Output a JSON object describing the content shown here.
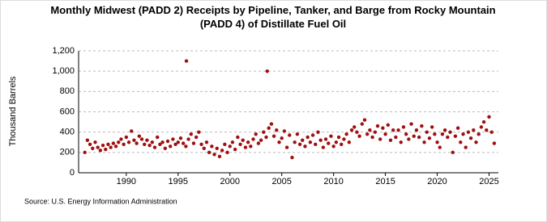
{
  "chart_data": {
    "type": "scatter",
    "title": "Monthly Midwest (PADD 2) Receipts by Pipeline, Tanker, and Barge from Rocky Mountain (PADD 4) of Distillate Fuel Oil",
    "ylabel": "Thousand Barrels",
    "source": "Source: U.S. Energy Information Administration",
    "color": "#a01010",
    "grid": true,
    "xlim": [
      1985.4,
      2025.9
    ],
    "ylim": [
      0,
      1200
    ],
    "xticks": [
      1990,
      1995,
      2000,
      2005,
      2010,
      2015,
      2020,
      2025
    ],
    "yticks": [
      0,
      200,
      400,
      600,
      800,
      {
        "value": 1000,
        "label": "1,000"
      },
      {
        "value": 1200,
        "label": "1,200"
      }
    ],
    "x": [
      1986,
      1986.25,
      1986.5,
      1986.75,
      1987,
      1987.25,
      1987.5,
      1987.75,
      1988,
      1988.25,
      1988.5,
      1988.75,
      1989,
      1989.25,
      1989.5,
      1989.75,
      1990,
      1990.25,
      1990.5,
      1990.75,
      1991,
      1991.25,
      1991.5,
      1991.75,
      1992,
      1992.25,
      1992.5,
      1992.75,
      1993,
      1993.25,
      1993.5,
      1993.75,
      1994,
      1994.25,
      1994.5,
      1994.75,
      1995,
      1995.25,
      1995.5,
      1995.75,
      1995.8,
      1996,
      1996.25,
      1996.5,
      1996.75,
      1997,
      1997.25,
      1997.5,
      1997.75,
      1998,
      1998.25,
      1998.5,
      1998.75,
      1999,
      1999.25,
      1999.5,
      1999.75,
      2000,
      2000.25,
      2000.5,
      2000.75,
      2001,
      2001.25,
      2001.5,
      2001.75,
      2002,
      2002.25,
      2002.5,
      2002.75,
      2003,
      2003.25,
      2003.5,
      2003.6,
      2003.75,
      2004,
      2004.25,
      2004.5,
      2004.75,
      2005,
      2005.25,
      2005.5,
      2005.75,
      2006,
      2006.25,
      2006.5,
      2006.75,
      2007,
      2007.25,
      2007.5,
      2007.75,
      2008,
      2008.25,
      2008.5,
      2008.75,
      2009,
      2009.25,
      2009.5,
      2009.75,
      2010,
      2010.25,
      2010.5,
      2010.75,
      2011,
      2011.25,
      2011.5,
      2011.75,
      2012,
      2012.25,
      2012.5,
      2012.75,
      2013,
      2013.25,
      2013.5,
      2013.75,
      2014,
      2014.25,
      2014.5,
      2014.75,
      2015,
      2015.25,
      2015.5,
      2015.75,
      2016,
      2016.25,
      2016.5,
      2016.75,
      2017,
      2017.25,
      2017.5,
      2017.75,
      2018,
      2018.25,
      2018.5,
      2018.75,
      2019,
      2019.25,
      2019.5,
      2019.75,
      2020,
      2020.25,
      2020.5,
      2020.75,
      2021,
      2021.25,
      2021.5,
      2021.75,
      2022,
      2022.25,
      2022.5,
      2022.75,
      2023,
      2023.25,
      2023.5,
      2023.75,
      2024,
      2024.25,
      2024.5,
      2024.75,
      2025,
      2025.25,
      2025.5
    ],
    "values": [
      200,
      320,
      280,
      240,
      300,
      250,
      220,
      270,
      230,
      280,
      250,
      290,
      260,
      300,
      330,
      280,
      350,
      300,
      410,
      320,
      290,
      360,
      330,
      280,
      320,
      270,
      300,
      250,
      350,
      280,
      300,
      240,
      310,
      260,
      330,
      280,
      300,
      340,
      290,
      260,
      1100,
      330,
      380,
      290,
      350,
      400,
      280,
      240,
      300,
      200,
      260,
      180,
      240,
      160,
      220,
      280,
      200,
      260,
      300,
      230,
      350,
      280,
      320,
      250,
      300,
      260,
      330,
      380,
      290,
      320,
      400,
      350,
      1000,
      440,
      480,
      360,
      420,
      300,
      340,
      410,
      250,
      370,
      150,
      300,
      380,
      280,
      320,
      260,
      350,
      300,
      370,
      280,
      400,
      320,
      250,
      330,
      290,
      360,
      260,
      300,
      350,
      280,
      330,
      380,
      300,
      420,
      450,
      400,
      360,
      480,
      520,
      380,
      420,
      350,
      400,
      460,
      330,
      440,
      380,
      470,
      320,
      420,
      350,
      420,
      300,
      450,
      380,
      330,
      480,
      360,
      420,
      350,
      460,
      300,
      400,
      340,
      450,
      380,
      300,
      250,
      380,
      420,
      350,
      400,
      200,
      360,
      440,
      300,
      380,
      250,
      400,
      340,
      420,
      300,
      380,
      450,
      500,
      420,
      550,
      400,
      290
    ]
  }
}
